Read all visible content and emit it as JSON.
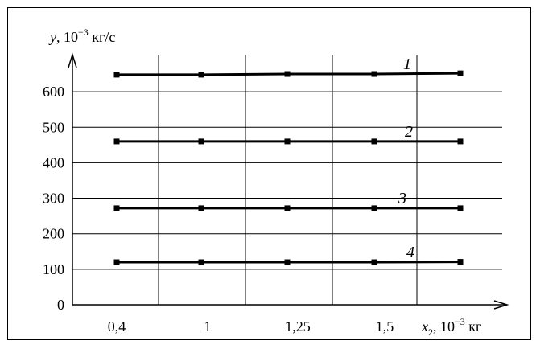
{
  "chart_data": {
    "type": "line",
    "x_tick_labels": [
      "0,4",
      "1",
      "1,25",
      "1,5"
    ],
    "ylim": [
      0,
      700
    ],
    "y_ticks": [
      0,
      100,
      200,
      300,
      400,
      500,
      600
    ],
    "y_tick_labels": [
      "0",
      "100",
      "200",
      "300",
      "400",
      "500",
      "600"
    ],
    "ylabel": {
      "var": "y",
      "unit_base": ", 10",
      "unit_exp": "−3",
      "unit": " кг/с"
    },
    "xlabel": {
      "var": "x",
      "sub": "2",
      "unit_base": ", 10",
      "unit_exp": "−3",
      "unit": " кг"
    },
    "grid": true,
    "series": [
      {
        "label": "1",
        "values": [
          648,
          648,
          650,
          650,
          652
        ]
      },
      {
        "label": "2",
        "values": [
          460,
          460,
          460,
          460,
          460
        ]
      },
      {
        "label": "3",
        "values": [
          272,
          272,
          272,
          272,
          272
        ]
      },
      {
        "label": "4",
        "values": [
          120,
          120,
          120,
          120,
          121
        ]
      }
    ]
  }
}
